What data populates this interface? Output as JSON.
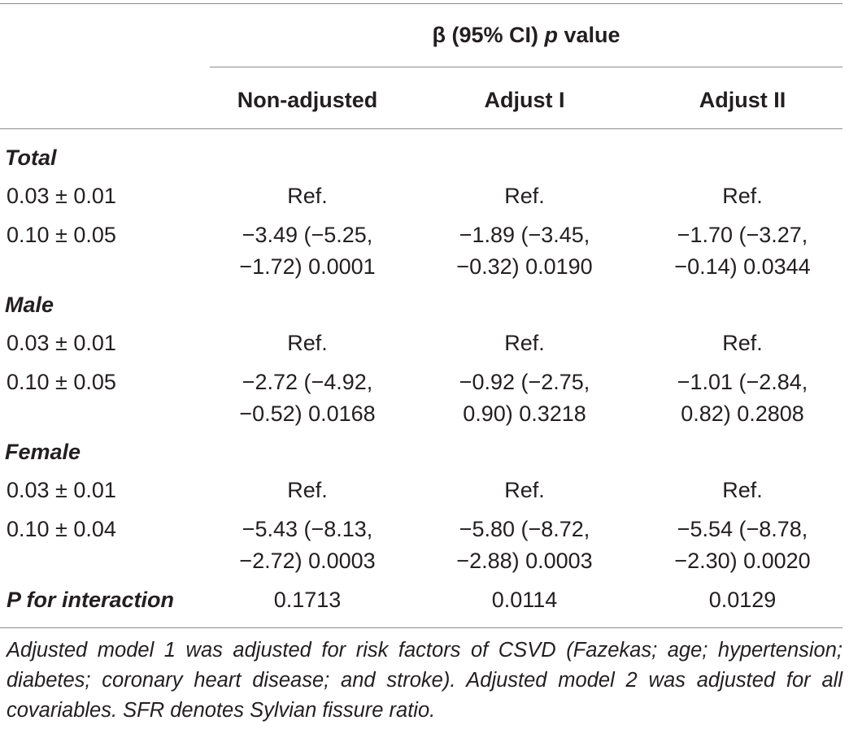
{
  "header": {
    "span_label_beta": "β (95% CI) ",
    "span_label_p": "p",
    "span_label_value": " value",
    "columns": [
      "Non-adjusted",
      "Adjust I",
      "Adjust II"
    ]
  },
  "groups": [
    {
      "name": "Total",
      "rows": [
        {
          "label": "0.03 ± 0.01",
          "cells": [
            "Ref.",
            "Ref.",
            "Ref."
          ]
        },
        {
          "label": "0.10 ± 0.05",
          "cells": [
            [
              "−3.49 (−5.25,",
              "−1.72) 0.0001"
            ],
            [
              "−1.89 (−3.45,",
              "−0.32) 0.0190"
            ],
            [
              "−1.70 (−3.27,",
              "−0.14) 0.0344"
            ]
          ]
        }
      ]
    },
    {
      "name": "Male",
      "rows": [
        {
          "label": "0.03 ± 0.01",
          "cells": [
            "Ref.",
            "Ref.",
            "Ref."
          ]
        },
        {
          "label": "0.10 ± 0.05",
          "cells": [
            [
              "−2.72 (−4.92,",
              "−0.52) 0.0168"
            ],
            [
              "−0.92 (−2.75,",
              "0.90) 0.3218"
            ],
            [
              "−1.01 (−2.84,",
              "0.82) 0.2808"
            ]
          ]
        }
      ]
    },
    {
      "name": "Female",
      "rows": [
        {
          "label": "0.03 ± 0.01",
          "cells": [
            "Ref.",
            "Ref.",
            "Ref."
          ]
        },
        {
          "label": "0.10 ± 0.04",
          "cells": [
            [
              "−5.43 (−8.13,",
              "−2.72) 0.0003"
            ],
            [
              "−5.80 (−8.72,",
              "−2.88) 0.0003"
            ],
            [
              "−5.54 (−8.78,",
              "−2.30) 0.0020"
            ]
          ]
        }
      ]
    }
  ],
  "interaction": {
    "label": "P for interaction",
    "values": [
      "0.1713",
      "0.0114",
      "0.0129"
    ]
  },
  "footnote": "Adjusted model 1 was adjusted for risk factors of CSVD (Fazekas; age; hypertension; diabetes; coronary heart disease; and stroke). Adjusted model 2 was adjusted for all covariables. SFR denotes Sylvian fissure ratio."
}
